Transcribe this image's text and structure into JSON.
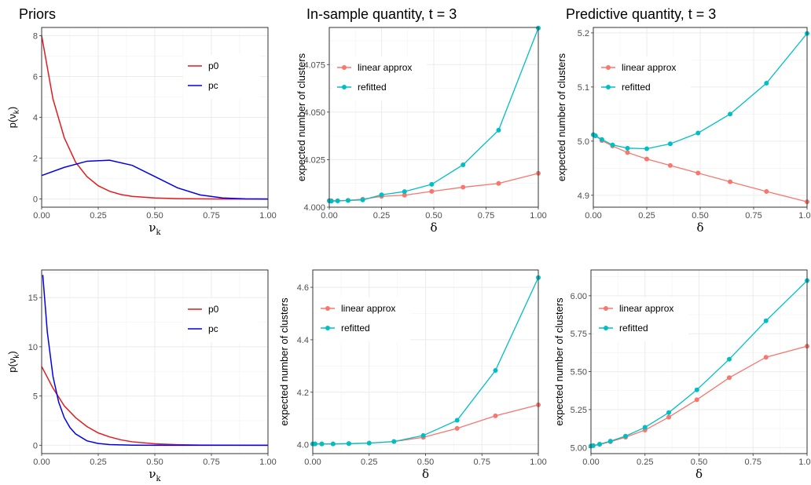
{
  "titles": {
    "priors": "Priors",
    "in_sample": "In-sample quantity, t = 3",
    "predictive": "Predictive quantity, t = 3"
  },
  "chart_data": [
    {
      "id": "priors-top",
      "type": "line",
      "xlabel_main": "ν",
      "xlabel_sub": "k",
      "ylabel": "p(ν_k)",
      "xlim": [
        0,
        1
      ],
      "ylim": [
        -0.4,
        8.4
      ],
      "xticks": [
        "0.00",
        "0.25",
        "0.50",
        "0.75",
        "1.00"
      ],
      "xtick_values": [
        0,
        0.25,
        0.5,
        0.75,
        1
      ],
      "yticks": [
        "0",
        "2",
        "4",
        "6",
        "8"
      ],
      "ytick_values": [
        0,
        2,
        4,
        6,
        8
      ],
      "grid": true,
      "legend_position": "top-right",
      "series": [
        {
          "name": "p0",
          "color": "#e41a1c",
          "x": [
            0,
            0.05,
            0.1,
            0.15,
            0.2,
            0.25,
            0.3,
            0.35,
            0.4,
            0.5,
            0.6,
            0.7,
            0.8,
            0.9,
            1.0
          ],
          "values": [
            8.0,
            4.9,
            3.0,
            1.8,
            1.1,
            0.65,
            0.38,
            0.22,
            0.13,
            0.05,
            0.02,
            0.01,
            0.0,
            0.0,
            0.0
          ]
        },
        {
          "name": "pc",
          "color": "#0000ee",
          "x": [
            0,
            0.1,
            0.2,
            0.3,
            0.4,
            0.5,
            0.6,
            0.7,
            0.8,
            0.9,
            1.0
          ],
          "values": [
            1.15,
            1.55,
            1.85,
            1.9,
            1.65,
            1.1,
            0.55,
            0.2,
            0.05,
            0.01,
            0.0
          ]
        }
      ]
    },
    {
      "id": "in-sample-top",
      "type": "line",
      "xlabel_main": "δ",
      "ylabel": "expected number of clusters",
      "xlim": [
        0,
        1
      ],
      "ylim": [
        4.0,
        4.0945
      ],
      "xticks": [
        "0.00",
        "0.25",
        "0.50",
        "0.75",
        "1.00"
      ],
      "xtick_values": [
        0,
        0.25,
        0.5,
        0.75,
        1
      ],
      "yticks": [
        "4.000",
        "4.025",
        "4.050",
        "4.075"
      ],
      "ytick_values": [
        4.0,
        4.025,
        4.05,
        4.075
      ],
      "grid": true,
      "legend_position": "top-left",
      "x": [
        0,
        0.01,
        0.04,
        0.09,
        0.16,
        0.25,
        0.36,
        0.49,
        0.64,
        0.81,
        1.0
      ],
      "series": [
        {
          "name": "linear approx",
          "color": "#f8766d",
          "values": [
            4.0035,
            4.0034,
            4.0034,
            4.0036,
            4.0042,
            4.0057,
            4.0063,
            4.0083,
            4.0105,
            4.0125,
            4.0178
          ]
        },
        {
          "name": "refitted",
          "color": "#00bfc4",
          "values": [
            4.0033,
            4.0032,
            4.0033,
            4.0035,
            4.0038,
            4.0065,
            4.0082,
            4.012,
            4.0223,
            4.0405,
            4.0942
          ]
        }
      ]
    },
    {
      "id": "predictive-top",
      "type": "line",
      "xlabel_main": "δ",
      "ylabel": "expected number of clusters",
      "xlim": [
        0,
        1
      ],
      "ylim": [
        4.878,
        5.21
      ],
      "xticks": [
        "0.00",
        "0.25",
        "0.50",
        "0.75",
        "1.00"
      ],
      "xtick_values": [
        0,
        0.25,
        0.5,
        0.75,
        1
      ],
      "yticks": [
        "4.9",
        "5.0",
        "5.1",
        "5.2"
      ],
      "ytick_values": [
        4.9,
        5.0,
        5.1,
        5.2
      ],
      "grid": true,
      "legend_position": "top-left",
      "x": [
        0,
        0.01,
        0.04,
        0.09,
        0.16,
        0.25,
        0.36,
        0.49,
        0.64,
        0.81,
        1.0
      ],
      "series": [
        {
          "name": "linear approx",
          "color": "#f8766d",
          "values": [
            5.012,
            5.01,
            5.001,
            4.991,
            4.979,
            4.967,
            4.955,
            4.941,
            4.925,
            4.907,
            4.888
          ]
        },
        {
          "name": "refitted",
          "color": "#00bfc4",
          "values": [
            5.012,
            5.01,
            5.003,
            4.993,
            4.987,
            4.986,
            4.995,
            5.015,
            5.05,
            5.107,
            5.199
          ]
        }
      ]
    },
    {
      "id": "priors-bottom",
      "type": "line",
      "xlabel_main": "ν",
      "xlabel_sub": "k",
      "ylabel": "p(ν_k)",
      "xlim": [
        0,
        1
      ],
      "ylim": [
        -0.85,
        17.8
      ],
      "xticks": [
        "0.00",
        "0.25",
        "0.50",
        "0.75",
        "1.00"
      ],
      "xtick_values": [
        0,
        0.25,
        0.5,
        0.75,
        1
      ],
      "yticks": [
        "0",
        "5",
        "10",
        "15"
      ],
      "ytick_values": [
        0,
        5,
        10,
        15
      ],
      "grid": true,
      "legend_position": "top-right",
      "series": [
        {
          "name": "p0",
          "color": "#e41a1c",
          "x": [
            0,
            0.05,
            0.1,
            0.15,
            0.2,
            0.25,
            0.3,
            0.35,
            0.4,
            0.5,
            0.6,
            0.7,
            1.0
          ],
          "values": [
            8.0,
            5.8,
            4.0,
            2.8,
            1.9,
            1.25,
            0.85,
            0.55,
            0.35,
            0.15,
            0.06,
            0.02,
            0.0
          ]
        },
        {
          "name": "pc",
          "color": "#0000ee",
          "x": [
            0.005,
            0.025,
            0.05,
            0.075,
            0.1,
            0.125,
            0.15,
            0.2,
            0.25,
            0.3,
            0.4,
            0.5,
            1.0
          ],
          "values": [
            17.3,
            11.5,
            7.0,
            4.4,
            2.8,
            1.8,
            1.15,
            0.45,
            0.18,
            0.07,
            0.01,
            0.0,
            0.0
          ]
        }
      ]
    },
    {
      "id": "in-sample-bottom",
      "type": "line",
      "xlabel_main": "δ",
      "ylabel": "expected number of clusters",
      "xlim": [
        0,
        1
      ],
      "ylim": [
        3.966,
        4.666
      ],
      "xticks": [
        "0.00",
        "0.25",
        "0.50",
        "0.75",
        "1.00"
      ],
      "xtick_values": [
        0,
        0.25,
        0.5,
        0.75,
        1
      ],
      "yticks": [
        "4.0",
        "4.2",
        "4.4",
        "4.6"
      ],
      "ytick_values": [
        4.0,
        4.2,
        4.4,
        4.6
      ],
      "grid": true,
      "legend_position": "top-left",
      "x": [
        0,
        0.01,
        0.04,
        0.09,
        0.16,
        0.25,
        0.36,
        0.49,
        0.64,
        0.81,
        1.0
      ],
      "series": [
        {
          "name": "linear approx",
          "color": "#f8766d",
          "values": [
            4.003,
            4.003,
            4.003,
            4.003,
            4.004,
            4.006,
            4.012,
            4.028,
            4.062,
            4.11,
            4.152
          ]
        },
        {
          "name": "refitted",
          "color": "#00bfc4",
          "values": [
            4.003,
            4.003,
            4.003,
            4.003,
            4.004,
            4.006,
            4.012,
            4.035,
            4.093,
            4.283,
            4.637
          ]
        }
      ]
    },
    {
      "id": "predictive-bottom",
      "type": "line",
      "xlabel_main": "δ",
      "ylabel": "expected number of clusters",
      "xlim": [
        0,
        1
      ],
      "ylim": [
        4.96,
        6.17
      ],
      "xticks": [
        "0.00",
        "0.25",
        "0.50",
        "0.75",
        "1.00"
      ],
      "xtick_values": [
        0,
        0.25,
        0.5,
        0.75,
        1
      ],
      "yticks": [
        "5.00",
        "5.25",
        "5.50",
        "5.75",
        "6.00"
      ],
      "ytick_values": [
        5.0,
        5.25,
        5.5,
        5.75,
        6.0
      ],
      "grid": true,
      "legend_position": "top-left",
      "x": [
        0,
        0.01,
        0.04,
        0.09,
        0.16,
        0.25,
        0.36,
        0.49,
        0.64,
        0.81,
        1.0
      ],
      "series": [
        {
          "name": "linear approx",
          "color": "#f8766d",
          "values": [
            5.01,
            5.012,
            5.02,
            5.038,
            5.068,
            5.115,
            5.2,
            5.315,
            5.46,
            5.595,
            5.668
          ]
        },
        {
          "name": "refitted",
          "color": "#00bfc4",
          "values": [
            5.01,
            5.013,
            5.022,
            5.042,
            5.075,
            5.133,
            5.23,
            5.38,
            5.582,
            5.835,
            6.1
          ]
        }
      ]
    }
  ]
}
